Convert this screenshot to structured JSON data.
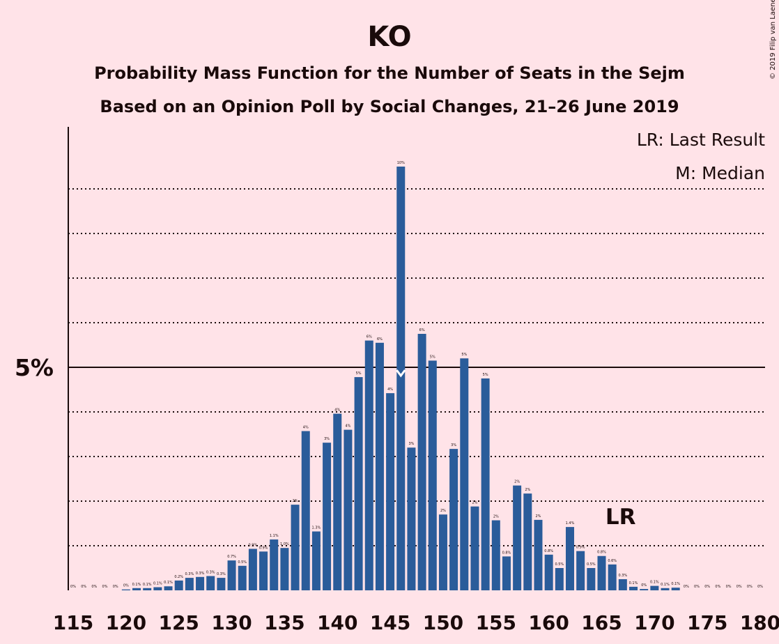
{
  "chart_data": {
    "type": "bar",
    "title": "KO",
    "subtitle_lines": [
      "Probability Mass Function for the Number of Seats in the Sejm",
      "Based on an Opinion Poll by Social Changes, 21–26 June 2019"
    ],
    "legend": [
      "LR: Last Result",
      "M: Median"
    ],
    "copyright": "© 2019 Filip van Laenen",
    "x": [
      115,
      116,
      117,
      118,
      119,
      120,
      121,
      122,
      123,
      124,
      125,
      126,
      127,
      128,
      129,
      130,
      131,
      132,
      133,
      134,
      135,
      136,
      137,
      138,
      139,
      140,
      141,
      142,
      143,
      144,
      145,
      146,
      147,
      148,
      149,
      150,
      151,
      152,
      153,
      154,
      155,
      156,
      157,
      158,
      159,
      160,
      161,
      162,
      163,
      164,
      165,
      166,
      167,
      168,
      169,
      170,
      171,
      172,
      173,
      174,
      175,
      176,
      177,
      178,
      179,
      180
    ],
    "values": [
      0,
      0,
      0,
      0,
      0,
      0.02,
      0.05,
      0.05,
      0.07,
      0.09,
      0.22,
      0.28,
      0.3,
      0.32,
      0.28,
      0.67,
      0.55,
      0.93,
      0.87,
      1.14,
      0.95,
      1.92,
      3.57,
      1.32,
      3.31,
      3.96,
      3.6,
      4.78,
      5.6,
      5.55,
      4.42,
      9.5,
      3.2,
      5.75,
      5.15,
      1.7,
      3.17,
      5.2,
      1.88,
      4.75,
      1.57,
      0.76,
      2.35,
      2.17,
      1.58,
      0.8,
      0.5,
      1.42,
      0.88,
      0.5,
      0.77,
      0.58,
      0.25,
      0.08,
      0.03,
      0.1,
      0.05,
      0.06,
      0,
      0,
      0,
      0,
      0,
      0,
      0,
      0
    ],
    "labels": [
      "0%",
      "0%",
      "0%",
      "0%",
      "0%",
      "0%",
      "0.1%",
      "0.1%",
      "0.1%",
      "0.1%",
      "0.2%",
      "0.3%",
      "0.3%",
      "0.3%",
      "0.3%",
      "0.7%",
      "0.5%",
      "0.9%",
      "0.9%",
      "1.1%",
      "1.0%",
      "2%",
      "4%",
      "1.3%",
      "3%",
      "4%",
      "4%",
      "5%",
      "6%",
      "6%",
      "4%",
      "10%",
      "3%",
      "6%",
      "5%",
      "2%",
      "3%",
      "5%",
      "2%",
      "5%",
      "2%",
      "0.8%",
      "2%",
      "2%",
      "2%",
      "0.8%",
      "0.5%",
      "1.4%",
      "0.9%",
      "0.5%",
      "0.8%",
      "0.6%",
      "0.3%",
      "0.1%",
      "0%",
      "0.1%",
      "0.1%",
      "0.1%",
      "0%",
      "0%",
      "0%",
      "0%",
      "0%",
      "0%",
      "0%",
      "0%"
    ],
    "xticks": [
      "115",
      "120",
      "125",
      "130",
      "135",
      "140",
      "145",
      "150",
      "155",
      "160",
      "165",
      "170",
      "175",
      "180"
    ],
    "ytick_label": "5%",
    "ylim": [
      0,
      10
    ],
    "gridlines_pct": [
      1,
      2,
      3,
      4,
      6,
      7,
      8,
      9
    ],
    "solid_line_pct": 5,
    "median_seat": 146,
    "last_result_seat": 166,
    "last_result_label": "LR",
    "bar_color": "#2a5c9a",
    "background": "#ffe3e8"
  }
}
